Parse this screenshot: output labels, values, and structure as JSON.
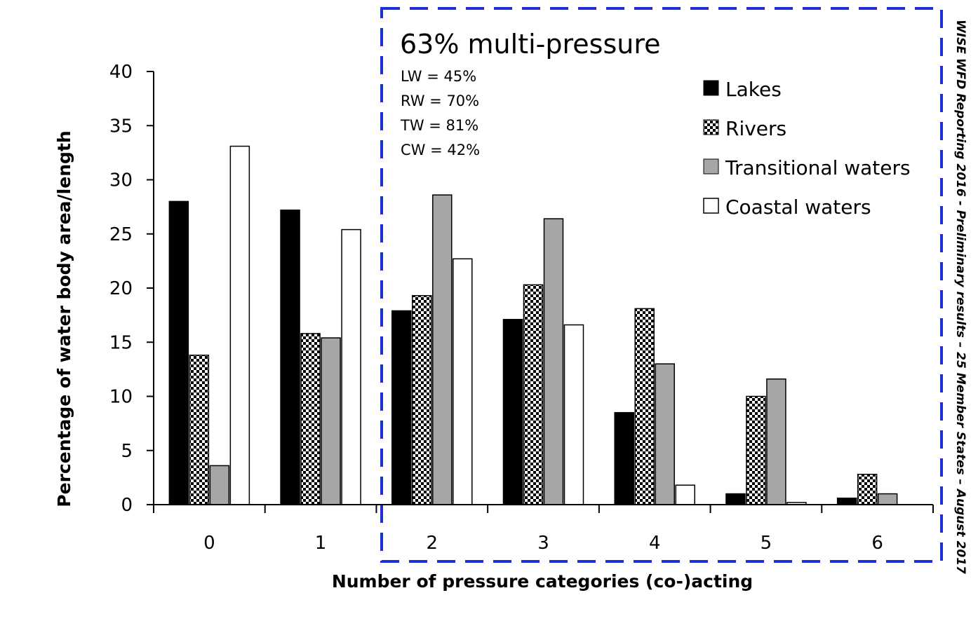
{
  "chart_data": {
    "type": "bar",
    "title": "",
    "xlabel": "Number of pressure categories (co-)acting",
    "ylabel": "Percentage of water body area/length",
    "ylim": [
      0,
      40
    ],
    "yticks": [
      0,
      5,
      10,
      15,
      20,
      25,
      30,
      35,
      40
    ],
    "categories": [
      "0",
      "1",
      "2",
      "3",
      "4",
      "5",
      "6"
    ],
    "series": [
      {
        "name": "Lakes",
        "pattern": "solid-black",
        "values": [
          28.0,
          27.2,
          17.9,
          17.1,
          8.5,
          1.0,
          0.6
        ]
      },
      {
        "name": "Rivers",
        "pattern": "checker",
        "values": [
          13.8,
          15.8,
          19.3,
          20.3,
          18.1,
          10.0,
          2.8
        ]
      },
      {
        "name": "Transitional waters",
        "pattern": "solid-gray",
        "values": [
          3.6,
          15.4,
          28.6,
          26.4,
          13.0,
          11.6,
          1.0
        ]
      },
      {
        "name": "Coastal waters",
        "pattern": "solid-white",
        "values": [
          33.1,
          25.4,
          22.7,
          16.6,
          1.8,
          0.2,
          0.0
        ]
      }
    ],
    "legend_position": "top-right",
    "annotation": {
      "title": "63% multi-pressure",
      "lines": [
        "LW = 45%",
        "RW = 70%",
        "TW = 81%",
        "CW = 42%"
      ],
      "box_style": "dashed blue",
      "spans_categories": [
        "2",
        "3",
        "4",
        "5",
        "6"
      ]
    }
  },
  "source_note": "WISE WFD Reporting 2016 - Preliminary  results – 25 Member States – August 2017",
  "colors": {
    "lakes": "#000000",
    "transitional": "#a6a6a6",
    "coastal": "#ffffff",
    "callout_border": "#1f2fd6",
    "axis": "#000000"
  }
}
